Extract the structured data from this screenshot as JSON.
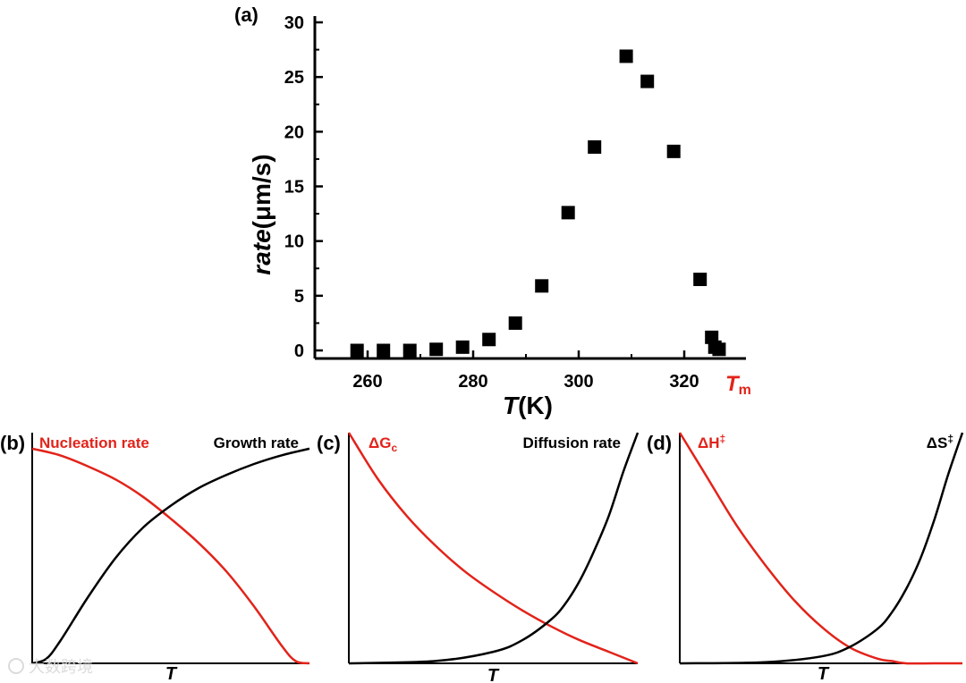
{
  "colors": {
    "accent": "#e2231a",
    "ink": "#000000"
  },
  "watermark": "大数跨境",
  "chart_data": [
    {
      "id": "a",
      "panel_label": "(a)",
      "type": "scatter",
      "marker": "square",
      "xlabel_symbol": "T",
      "xlabel_unit": "(K)",
      "ylabel_symbol": "rate",
      "ylabel_unit": "(μm/s)",
      "xlim": [
        250,
        332
      ],
      "ylim": [
        -1,
        30
      ],
      "xticks": [
        260,
        280,
        300,
        320
      ],
      "yticks": [
        0,
        5,
        10,
        15,
        20,
        25,
        30
      ],
      "tm_symbol": "T",
      "tm_sub": "m",
      "tm_x": 328,
      "x": [
        258,
        263,
        268,
        273,
        278,
        283,
        288,
        293,
        298,
        303,
        309,
        313,
        318,
        323,
        325.2,
        325.8,
        326.6
      ],
      "y": [
        0,
        0,
        0,
        0.1,
        0.3,
        1.0,
        2.5,
        5.9,
        12.6,
        18.6,
        26.9,
        24.6,
        18.2,
        6.5,
        1.2,
        0.3,
        0.1
      ]
    },
    {
      "id": "b",
      "panel_label": "(b)",
      "type": "line",
      "xlabel": "T",
      "series": [
        {
          "name": "Nucleation rate",
          "color": "#e2231a",
          "x": [
            0,
            0.1,
            0.2,
            0.3,
            0.4,
            0.5,
            0.6,
            0.7,
            0.8,
            0.9,
            0.95,
            1.0
          ],
          "y": [
            0.98,
            0.95,
            0.9,
            0.84,
            0.76,
            0.66,
            0.55,
            0.42,
            0.26,
            0.08,
            0.01,
            0
          ]
        },
        {
          "name": "Growth rate",
          "color": "#000000",
          "x": [
            0,
            0.05,
            0.1,
            0.2,
            0.3,
            0.4,
            0.5,
            0.6,
            0.7,
            0.8,
            0.9,
            1.0
          ],
          "y": [
            0,
            0.02,
            0.1,
            0.3,
            0.48,
            0.62,
            0.72,
            0.8,
            0.86,
            0.91,
            0.95,
            0.98
          ]
        }
      ]
    },
    {
      "id": "c",
      "panel_label": "(c)",
      "type": "line",
      "xlabel": "T",
      "series": [
        {
          "name": "ΔG",
          "name_sub": "c",
          "color": "#e2231a",
          "x": [
            0,
            0.1,
            0.2,
            0.3,
            0.4,
            0.5,
            0.6,
            0.7,
            0.8,
            0.9,
            1.0
          ],
          "y": [
            1.0,
            0.8,
            0.64,
            0.51,
            0.4,
            0.31,
            0.23,
            0.16,
            0.1,
            0.05,
            0
          ]
        },
        {
          "name": "Diffusion rate",
          "color": "#000000",
          "x": [
            0,
            0.3,
            0.5,
            0.6,
            0.7,
            0.75,
            0.8,
            0.85,
            0.9,
            0.95,
            1.0
          ],
          "y": [
            0,
            0.01,
            0.05,
            0.1,
            0.19,
            0.26,
            0.36,
            0.49,
            0.64,
            0.83,
            1.0
          ]
        }
      ]
    },
    {
      "id": "d",
      "panel_label": "(d)",
      "type": "line",
      "xlabel": "T",
      "series": [
        {
          "name": "ΔH",
          "name_sup": "‡",
          "color": "#e2231a",
          "x": [
            0,
            0.1,
            0.2,
            0.3,
            0.4,
            0.5,
            0.6,
            0.7,
            0.75,
            0.8,
            0.9,
            1.0
          ],
          "y": [
            1.0,
            0.8,
            0.6,
            0.43,
            0.28,
            0.16,
            0.07,
            0.02,
            0.01,
            0,
            0,
            0
          ]
        },
        {
          "name": "ΔS",
          "name_sup": "‡",
          "color": "#000000",
          "x": [
            0,
            0.3,
            0.5,
            0.6,
            0.7,
            0.75,
            0.8,
            0.85,
            0.9,
            0.95,
            1.0
          ],
          "y": [
            0,
            0.005,
            0.03,
            0.07,
            0.15,
            0.22,
            0.32,
            0.45,
            0.62,
            0.82,
            1.0
          ]
        }
      ]
    }
  ]
}
